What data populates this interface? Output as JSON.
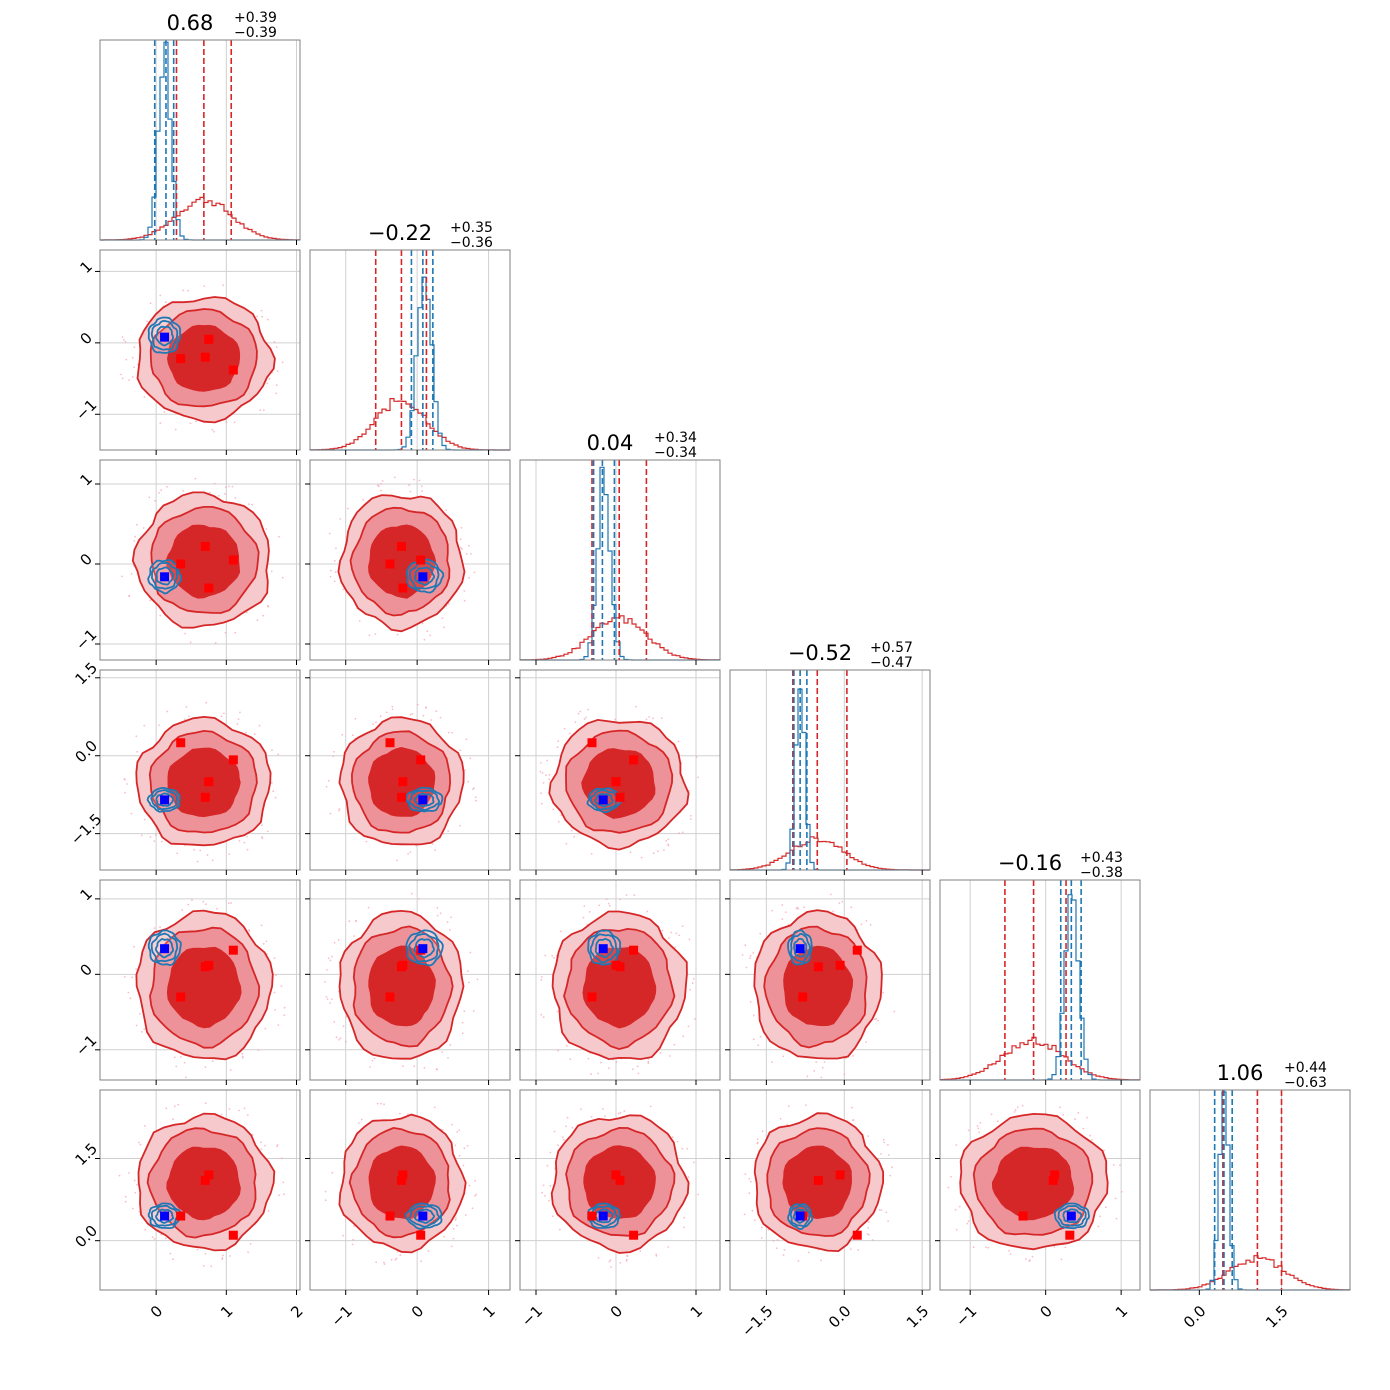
{
  "chart_data": {
    "type": "corner",
    "grid": true,
    "colors": {
      "posterior_a": "#d62728",
      "posterior_b": "#1f77b4",
      "truth_marker_a": "#ff0000",
      "truth_marker_b": "#0000ff"
    },
    "parameters": [
      {
        "title_median": "0.68",
        "title_plus": "+0.39",
        "title_minus": "−0.39",
        "range": [
          -0.8,
          2.05
        ],
        "ticks": [
          0,
          1,
          2
        ],
        "tick_labels": [
          "0",
          "1",
          "2"
        ],
        "quantiles_a": [
          0.29,
          0.68,
          1.07
        ],
        "quantiles_b": [
          -0.02,
          0.14,
          0.25
        ],
        "hist_a": {
          "mean": 0.68,
          "sd": 0.39
        },
        "hist_b": {
          "mean": 0.12,
          "sd": 0.09
        },
        "truth_a": [
          0.35,
          0.7,
          0.75,
          1.1
        ],
        "truth_b": 0.12
      },
      {
        "title_median": "−0.22",
        "title_plus": "+0.35",
        "title_minus": "−0.36",
        "range": [
          -1.5,
          1.3
        ],
        "ticks": [
          -1,
          0,
          1
        ],
        "tick_labels": [
          "−1",
          "0",
          "1"
        ],
        "quantiles_a": [
          -0.58,
          -0.22,
          0.13
        ],
        "quantiles_b": [
          -0.08,
          0.08,
          0.22
        ],
        "hist_a": {
          "mean": -0.22,
          "sd": 0.35
        },
        "hist_b": {
          "mean": 0.1,
          "sd": 0.1
        },
        "truth_a": [
          -0.38,
          -0.22,
          -0.2,
          0.05
        ],
        "truth_b": 0.08
      },
      {
        "title_median": "0.04",
        "title_plus": "+0.34",
        "title_minus": "−0.34",
        "range": [
          -1.2,
          1.3
        ],
        "ticks": [
          -1,
          0,
          1
        ],
        "tick_labels": [
          "−1",
          "0",
          "1"
        ],
        "quantiles_a": [
          -0.3,
          0.04,
          0.38
        ],
        "quantiles_b": [
          -0.28,
          -0.17,
          -0.02
        ],
        "hist_a": {
          "mean": 0.04,
          "sd": 0.34
        },
        "hist_b": {
          "mean": -0.15,
          "sd": 0.08
        },
        "truth_a": [
          -0.3,
          0.05,
          0.0,
          0.22
        ],
        "truth_b": -0.16
      },
      {
        "title_median": "−0.52",
        "title_plus": "+0.57",
        "title_minus": "−0.47",
        "range": [
          -2.2,
          1.65
        ],
        "ticks": [
          -1.5,
          0.0,
          1.5
        ],
        "tick_labels": [
          "−1.5",
          "0.0",
          "1.5"
        ],
        "quantiles_a": [
          -0.99,
          -0.52,
          0.05
        ],
        "quantiles_b": [
          -0.97,
          -0.85,
          -0.72
        ],
        "hist_a": {
          "mean": -0.52,
          "sd": 0.5
        },
        "hist_b": {
          "mean": -0.85,
          "sd": 0.09
        },
        "truth_a": [
          -0.8,
          -0.5,
          -0.08,
          0.25
        ],
        "truth_b": -0.85
      },
      {
        "title_median": "−0.16",
        "title_plus": "+0.43",
        "title_minus": "−0.38",
        "range": [
          -1.4,
          1.25
        ],
        "ticks": [
          -1,
          0,
          1
        ],
        "tick_labels": [
          "−1",
          "0",
          "1"
        ],
        "quantiles_a": [
          -0.54,
          -0.16,
          0.27
        ],
        "quantiles_b": [
          0.2,
          0.34,
          0.47
        ],
        "hist_a": {
          "mean": -0.16,
          "sd": 0.4
        },
        "hist_b": {
          "mean": 0.35,
          "sd": 0.09
        },
        "truth_a": [
          -0.3,
          0.1,
          0.12,
          0.32
        ],
        "truth_b": 0.34
      },
      {
        "title_median": "1.06",
        "title_plus": "+0.44",
        "title_minus": "−0.63",
        "range": [
          -0.9,
          2.75
        ],
        "ticks": [
          0.0,
          1.5
        ],
        "tick_labels": [
          "0.0",
          "1.5"
        ],
        "quantiles_a": [
          0.43,
          1.06,
          1.5
        ],
        "quantiles_b": [
          0.28,
          0.45,
          0.6
        ],
        "hist_a": {
          "mean": 1.06,
          "sd": 0.5
        },
        "hist_b": {
          "mean": 0.45,
          "sd": 0.09
        },
        "truth_a": [
          0.1,
          0.45,
          1.1,
          1.2
        ],
        "truth_b": 0.45
      }
    ]
  }
}
